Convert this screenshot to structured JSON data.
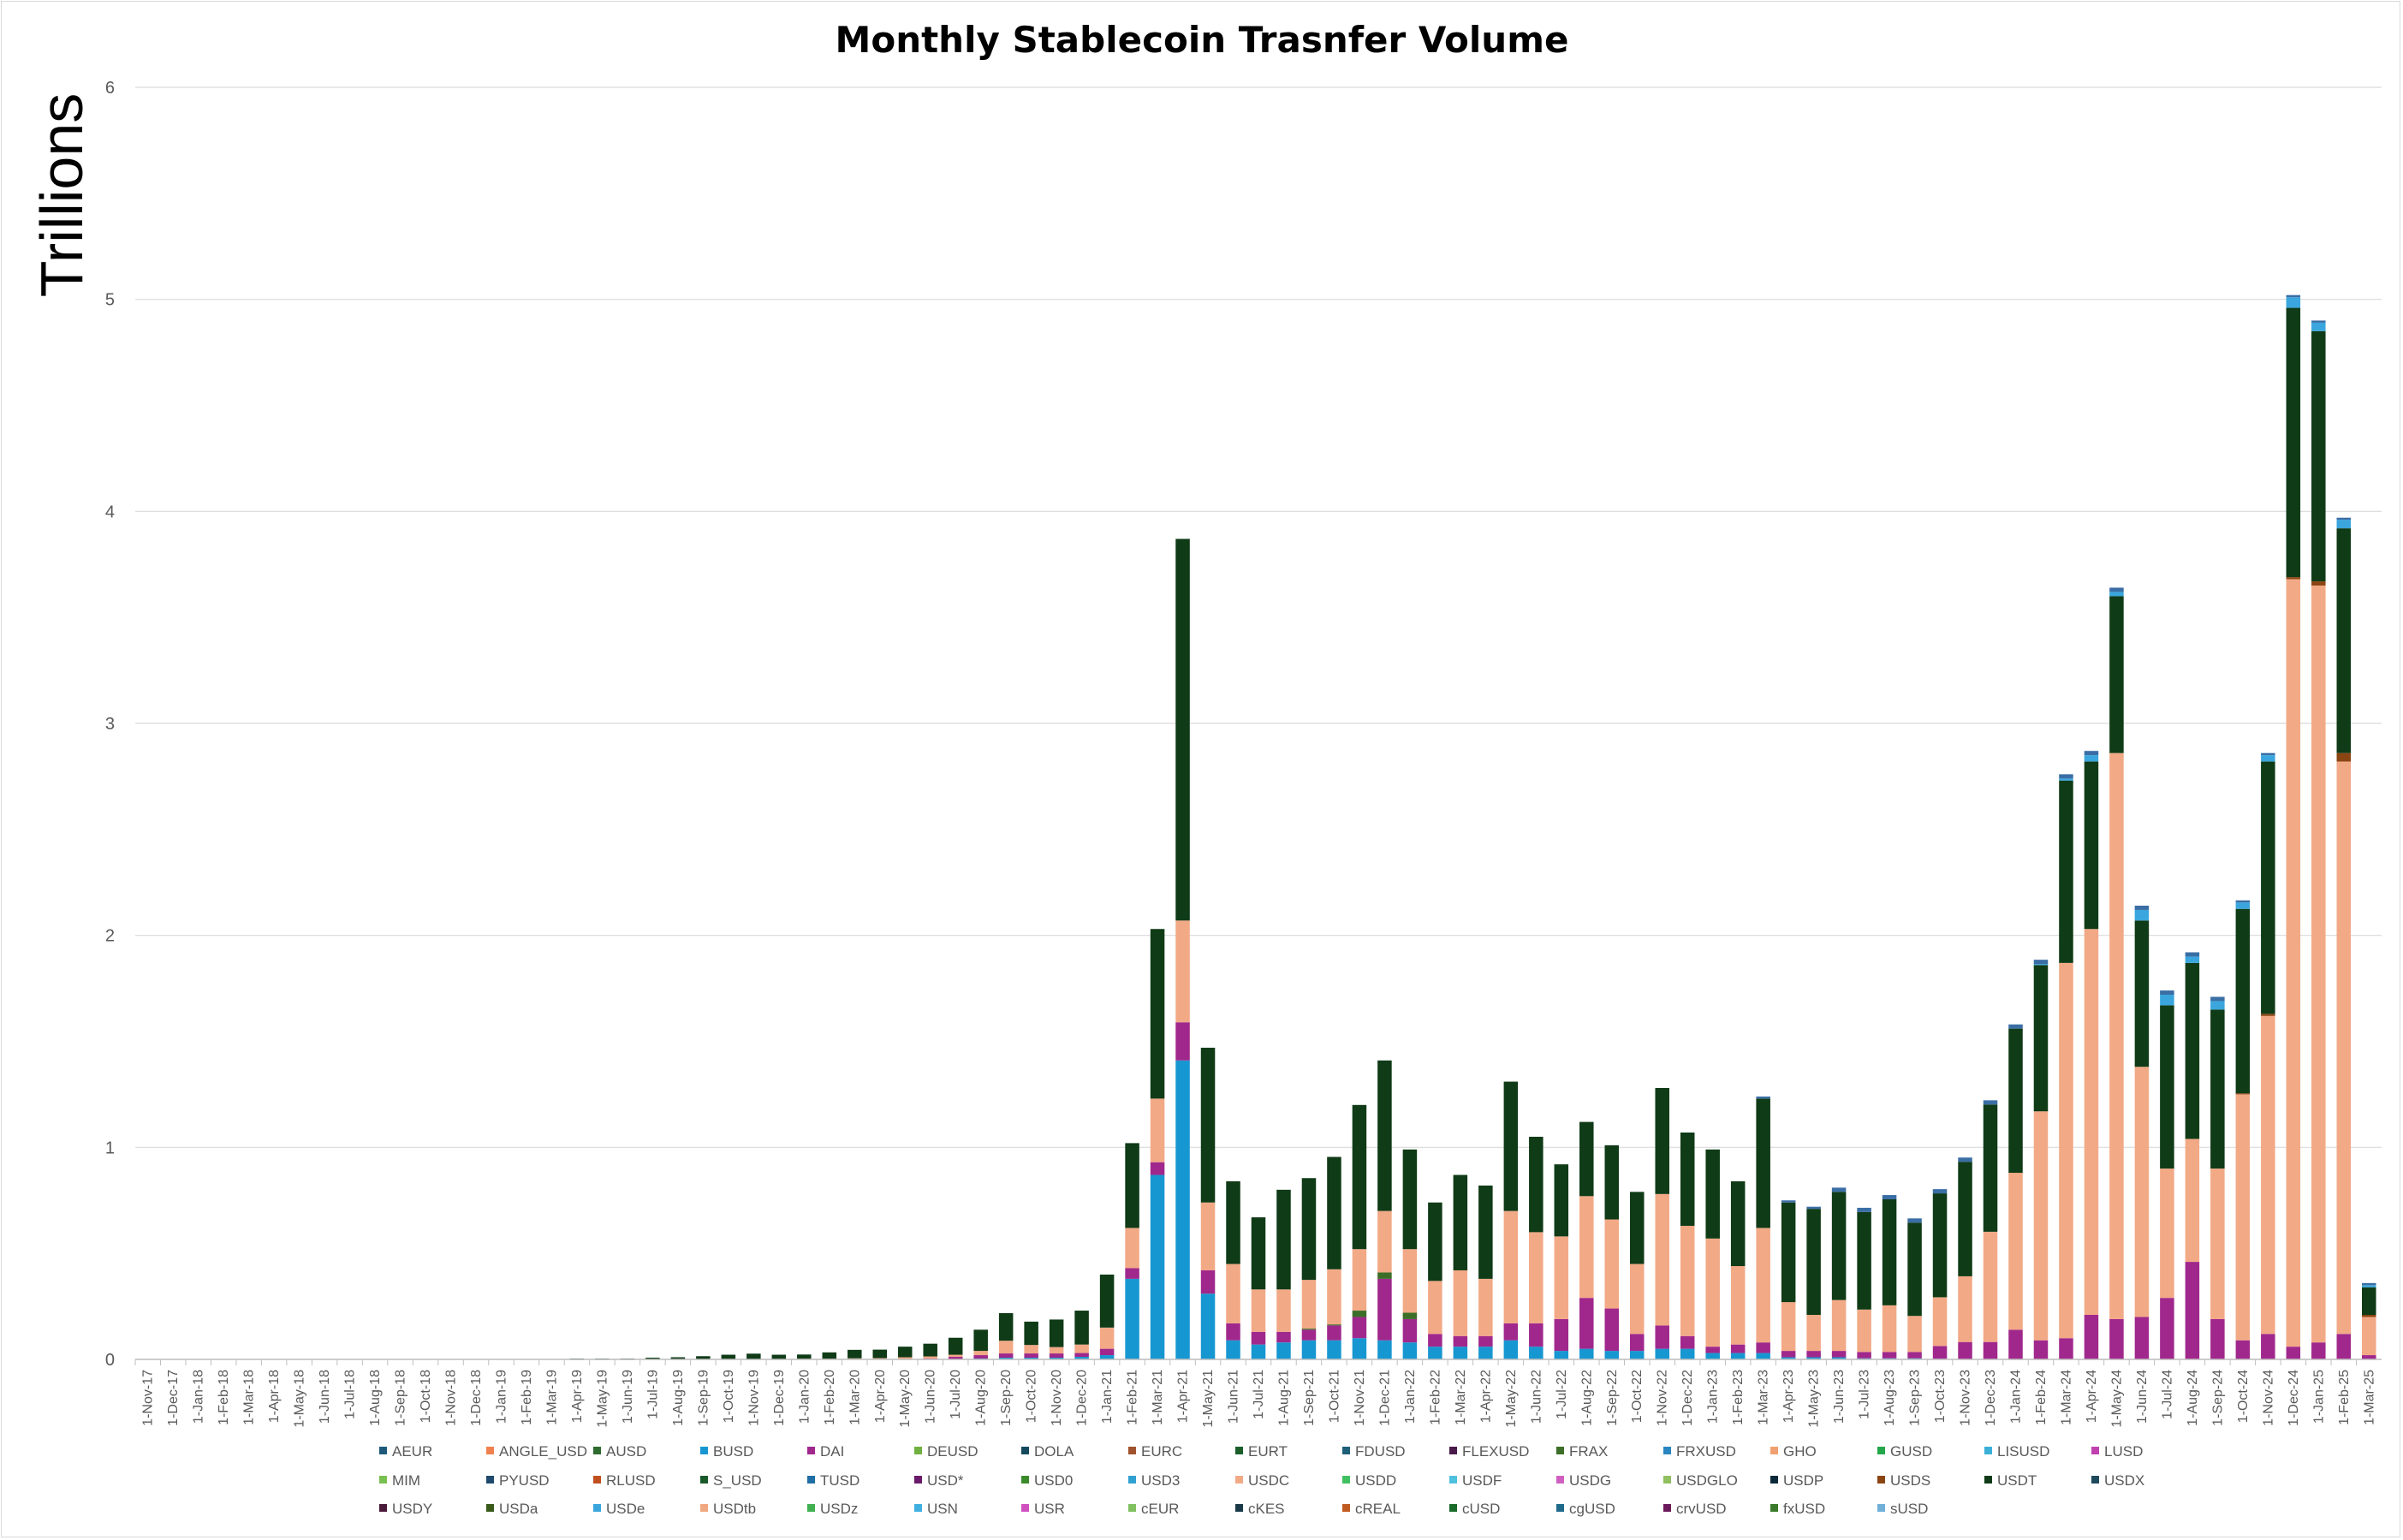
{
  "chart_data": {
    "type": "bar",
    "stacked": true,
    "title": "Monthly Stablecoin Trasnfer Volume",
    "ylabel": "Trillions",
    "xlabel": "",
    "ylim": [
      0,
      6
    ],
    "yticks": [
      "0",
      "1",
      "2",
      "3",
      "4",
      "5",
      "6"
    ],
    "grid": true,
    "legend_position": "bottom",
    "categories": [
      "1-Nov-17",
      "1-Dec-17",
      "1-Jan-18",
      "1-Feb-18",
      "1-Mar-18",
      "1-Apr-18",
      "1-May-18",
      "1-Jun-18",
      "1-Jul-18",
      "1-Aug-18",
      "1-Sep-18",
      "1-Oct-18",
      "1-Nov-18",
      "1-Dec-18",
      "1-Jan-19",
      "1-Feb-19",
      "1-Mar-19",
      "1-Apr-19",
      "1-May-19",
      "1-Jun-19",
      "1-Jul-19",
      "1-Aug-19",
      "1-Sep-19",
      "1-Oct-19",
      "1-Nov-19",
      "1-Dec-19",
      "1-Jan-20",
      "1-Feb-20",
      "1-Mar-20",
      "1-Apr-20",
      "1-May-20",
      "1-Jun-20",
      "1-Jul-20",
      "1-Aug-20",
      "1-Sep-20",
      "1-Oct-20",
      "1-Nov-20",
      "1-Dec-20",
      "1-Jan-21",
      "1-Feb-21",
      "1-Mar-21",
      "1-Apr-21",
      "1-May-21",
      "1-Jun-21",
      "1-Jul-21",
      "1-Aug-21",
      "1-Sep-21",
      "1-Oct-21",
      "1-Nov-21",
      "1-Dec-21",
      "1-Jan-22",
      "1-Feb-22",
      "1-Mar-22",
      "1-Apr-22",
      "1-May-22",
      "1-Jun-22",
      "1-Jul-22",
      "1-Aug-22",
      "1-Sep-22",
      "1-Oct-22",
      "1-Nov-22",
      "1-Dec-22",
      "1-Jan-23",
      "1-Feb-23",
      "1-Mar-23",
      "1-Apr-23",
      "1-May-23",
      "1-Jun-23",
      "1-Jul-23",
      "1-Aug-23",
      "1-Sep-23",
      "1-Oct-23",
      "1-Nov-23",
      "1-Dec-23",
      "1-Jan-24",
      "1-Feb-24",
      "1-Mar-24",
      "1-Apr-24",
      "1-May-24",
      "1-Jun-24",
      "1-Jul-24",
      "1-Aug-24",
      "1-Sep-24",
      "1-Oct-24",
      "1-Nov-24",
      "1-Dec-24",
      "1-Jan-25",
      "1-Feb-25",
      "1-Mar-25"
    ],
    "series": [
      {
        "name": "BUSD",
        "color": "#1797d1",
        "values": [
          0,
          0,
          0,
          0,
          0,
          0,
          0,
          0,
          0,
          0,
          0,
          0,
          0,
          0,
          0,
          0,
          0,
          0,
          0,
          0,
          0,
          0,
          0,
          0,
          0,
          0,
          0,
          0,
          0,
          0,
          0,
          0,
          0.002,
          0.004,
          0.008,
          0.008,
          0.008,
          0.012,
          0.02,
          0.38,
          0.87,
          1.41,
          0.31,
          0.09,
          0.07,
          0.08,
          0.09,
          0.09,
          0.1,
          0.09,
          0.08,
          0.06,
          0.06,
          0.06,
          0.09,
          0.06,
          0.04,
          0.05,
          0.04,
          0.04,
          0.05,
          0.05,
          0.03,
          0.03,
          0.03,
          0.01,
          0.01,
          0.01,
          0.005,
          0.005,
          0.005,
          0.003,
          0.002,
          0.002,
          0,
          0,
          0,
          0,
          0,
          0,
          0,
          0,
          0,
          0,
          0,
          0,
          0,
          0,
          0
        ]
      },
      {
        "name": "DAI",
        "color": "#a0288c",
        "values": [
          0,
          0,
          0,
          0,
          0,
          0,
          0,
          0,
          0,
          0,
          0,
          0,
          0,
          0,
          0,
          0,
          0,
          0,
          0,
          0,
          0,
          0,
          0,
          0,
          0,
          0,
          0,
          0,
          0,
          0,
          0.002,
          0.004,
          0.01,
          0.016,
          0.02,
          0.02,
          0.02,
          0.018,
          0.03,
          0.05,
          0.06,
          0.18,
          0.11,
          0.08,
          0.06,
          0.05,
          0.05,
          0.07,
          0.1,
          0.29,
          0.11,
          0.06,
          0.05,
          0.05,
          0.08,
          0.11,
          0.15,
          0.24,
          0.2,
          0.08,
          0.11,
          0.06,
          0.03,
          0.04,
          0.05,
          0.03,
          0.03,
          0.03,
          0.03,
          0.03,
          0.03,
          0.06,
          0.08,
          0.08,
          0.14,
          0.09,
          0.1,
          0.21,
          0.19,
          0.2,
          0.29,
          0.46,
          0.19,
          0.09,
          0.12,
          0.06,
          0.08,
          0.12,
          0.02
        ]
      },
      {
        "name": "FRAX",
        "color": "#3c6e27",
        "values": [
          0,
          0,
          0,
          0,
          0,
          0,
          0,
          0,
          0,
          0,
          0,
          0,
          0,
          0,
          0,
          0,
          0,
          0,
          0,
          0,
          0,
          0,
          0,
          0,
          0,
          0,
          0,
          0,
          0,
          0,
          0,
          0,
          0,
          0,
          0,
          0,
          0,
          0,
          0,
          0,
          0,
          0,
          0,
          0,
          0,
          0,
          0.005,
          0.005,
          0.03,
          0.03,
          0.03,
          0,
          0,
          0,
          0,
          0,
          0,
          0,
          0,
          0,
          0,
          0,
          0,
          0,
          0,
          0,
          0,
          0,
          0,
          0,
          0,
          0,
          0,
          0,
          0,
          0,
          0,
          0,
          0,
          0,
          0,
          0,
          0,
          0,
          0,
          0,
          0,
          0,
          0
        ]
      },
      {
        "name": "USDC",
        "color": "#f2a986",
        "values": [
          0,
          0,
          0,
          0,
          0,
          0,
          0,
          0,
          0,
          0,
          0,
          0,
          0,
          0,
          0,
          0,
          0,
          0,
          0,
          0,
          0,
          0,
          0,
          0.002,
          0.002,
          0.002,
          0.003,
          0.003,
          0.005,
          0.006,
          0.008,
          0.01,
          0.01,
          0.02,
          0.06,
          0.04,
          0.03,
          0.04,
          0.1,
          0.19,
          0.3,
          0.48,
          0.32,
          0.28,
          0.2,
          0.2,
          0.23,
          0.26,
          0.29,
          0.29,
          0.3,
          0.25,
          0.31,
          0.27,
          0.53,
          0.43,
          0.39,
          0.48,
          0.42,
          0.33,
          0.62,
          0.52,
          0.51,
          0.37,
          0.54,
          0.23,
          0.17,
          0.24,
          0.2,
          0.22,
          0.17,
          0.23,
          0.31,
          0.52,
          0.74,
          1.08,
          1.77,
          1.82,
          2.67,
          1.18,
          0.61,
          0.58,
          0.71,
          1.16,
          1.5,
          3.62,
          3.57,
          2.7,
          0.18
        ]
      },
      {
        "name": "USDS",
        "color": "#8b4513",
        "values": [
          0,
          0,
          0,
          0,
          0,
          0,
          0,
          0,
          0,
          0,
          0,
          0,
          0,
          0,
          0,
          0,
          0,
          0,
          0,
          0,
          0,
          0,
          0,
          0,
          0,
          0,
          0,
          0,
          0,
          0,
          0,
          0,
          0,
          0,
          0,
          0,
          0,
          0,
          0,
          0,
          0,
          0,
          0,
          0,
          0,
          0,
          0,
          0,
          0,
          0,
          0,
          0,
          0,
          0,
          0,
          0,
          0,
          0,
          0,
          0,
          0,
          0,
          0,
          0,
          0,
          0,
          0,
          0,
          0,
          0,
          0,
          0,
          0,
          0,
          0,
          0,
          0,
          0,
          0,
          0,
          0,
          0,
          0,
          0.005,
          0.01,
          0.01,
          0.02,
          0.04,
          0.01
        ]
      },
      {
        "name": "USDT",
        "color": "#0f3b17",
        "values": [
          0,
          0,
          0,
          0,
          0,
          0,
          0,
          0,
          0,
          0,
          0,
          0,
          0,
          0.002,
          0.001,
          0.001,
          0.001,
          0.004,
          0.004,
          0.004,
          0.008,
          0.01,
          0.015,
          0.02,
          0.025,
          0.02,
          0.02,
          0.03,
          0.04,
          0.04,
          0.05,
          0.06,
          0.08,
          0.1,
          0.13,
          0.11,
          0.13,
          0.16,
          0.25,
          0.4,
          0.8,
          1.8,
          0.73,
          0.39,
          0.34,
          0.47,
          0.48,
          0.53,
          0.68,
          0.71,
          0.47,
          0.37,
          0.45,
          0.44,
          0.61,
          0.45,
          0.34,
          0.35,
          0.35,
          0.34,
          0.5,
          0.44,
          0.42,
          0.4,
          0.61,
          0.47,
          0.5,
          0.51,
          0.46,
          0.5,
          0.44,
          0.49,
          0.54,
          0.6,
          0.68,
          0.69,
          0.86,
          0.79,
          0.74,
          0.69,
          0.77,
          0.83,
          0.75,
          0.87,
          1.19,
          1.27,
          1.18,
          1.06,
          0.13
        ]
      },
      {
        "name": "USDe",
        "color": "#3aa6dd",
        "values": [
          0,
          0,
          0,
          0,
          0,
          0,
          0,
          0,
          0,
          0,
          0,
          0,
          0,
          0,
          0,
          0,
          0,
          0,
          0,
          0,
          0,
          0,
          0,
          0,
          0,
          0,
          0,
          0,
          0,
          0,
          0,
          0,
          0,
          0,
          0,
          0,
          0,
          0,
          0,
          0,
          0,
          0,
          0,
          0,
          0,
          0,
          0,
          0,
          0,
          0,
          0,
          0,
          0,
          0,
          0,
          0,
          0,
          0,
          0,
          0,
          0,
          0,
          0,
          0,
          0,
          0,
          0,
          0,
          0,
          0,
          0,
          0,
          0,
          0,
          0,
          0.005,
          0.01,
          0.03,
          0.02,
          0.05,
          0.05,
          0.03,
          0.04,
          0.03,
          0.03,
          0.05,
          0.04,
          0.04,
          0.01
        ]
      },
      {
        "name": "TUSD",
        "color": "#3a6ea5",
        "values": [
          0,
          0,
          0,
          0,
          0,
          0,
          0,
          0,
          0,
          0,
          0,
          0,
          0,
          0,
          0,
          0,
          0,
          0,
          0,
          0,
          0,
          0,
          0,
          0,
          0,
          0,
          0,
          0,
          0,
          0,
          0,
          0,
          0,
          0,
          0,
          0,
          0,
          0,
          0,
          0,
          0,
          0,
          0,
          0,
          0,
          0,
          0,
          0,
          0,
          0,
          0,
          0,
          0,
          0,
          0,
          0,
          0,
          0,
          0,
          0,
          0,
          0,
          0,
          0,
          0.01,
          0.01,
          0.01,
          0.02,
          0.02,
          0.02,
          0.02,
          0.02,
          0.02,
          0.02,
          0.02,
          0.02,
          0.02,
          0.02,
          0.02,
          0.02,
          0.02,
          0.02,
          0.02,
          0.01,
          0.01,
          0.01,
          0.01,
          0.01,
          0.01
        ]
      }
    ],
    "legend": [
      [
        "AEUR",
        "#1f5a7a"
      ],
      [
        "ANGLE_USD",
        "#f08050"
      ],
      [
        "AUSD",
        "#2e6b2e"
      ],
      [
        "BUSD",
        "#1797d1"
      ],
      [
        "DAI",
        "#a0288c"
      ],
      [
        "DEUSD",
        "#70b040"
      ],
      [
        "DOLA",
        "#154a5e"
      ],
      [
        "EURC",
        "#a0522d"
      ],
      [
        "EURT",
        "#1a5e2a"
      ],
      [
        "FDUSD",
        "#1e5f7a"
      ],
      [
        "FLEXUSD",
        "#4a1a4a"
      ],
      [
        "FRAX",
        "#3c6e27"
      ],
      [
        "FRXUSD",
        "#2a86c0"
      ],
      [
        "GHO",
        "#f0a070"
      ],
      [
        "GUSD",
        "#22a84a"
      ],
      [
        "LISUSD",
        "#3ab0d8"
      ],
      [
        "LUSD",
        "#c040b0"
      ],
      [
        "MIM",
        "#7ac050"
      ],
      [
        "PYUSD",
        "#1f4a6e"
      ],
      [
        "RLUSD",
        "#c05020"
      ],
      [
        "S_USD",
        "#1a5a2a"
      ],
      [
        "TUSD",
        "#1f6ea5"
      ],
      [
        "USD*",
        "#6a1a6a"
      ],
      [
        "USD0",
        "#3a8a2a"
      ],
      [
        "USD3",
        "#30a0d0"
      ],
      [
        "USDC",
        "#f2a986"
      ],
      [
        "USDD",
        "#40c060"
      ],
      [
        "USDF",
        "#50c0e0"
      ],
      [
        "USDG",
        "#d060c0"
      ],
      [
        "USDGLO",
        "#90c060"
      ],
      [
        "USDP",
        "#0a2a3a"
      ],
      [
        "USDS",
        "#8b4513"
      ],
      [
        "USDT",
        "#0f3b17"
      ],
      [
        "USDX",
        "#1f4a5e"
      ],
      [
        "USDY",
        "#4a1a3a"
      ],
      [
        "USDa",
        "#3a5a1a"
      ],
      [
        "USDe",
        "#3aa6dd"
      ],
      [
        "USDtb",
        "#f0a880"
      ],
      [
        "USDz",
        "#40b050"
      ],
      [
        "USN",
        "#40b0e0"
      ],
      [
        "USR",
        "#d050c0"
      ],
      [
        "cEUR",
        "#80c060"
      ],
      [
        "cKES",
        "#1a3a4a"
      ],
      [
        "cREAL",
        "#c05a20"
      ],
      [
        "cUSD",
        "#1a6a2a"
      ],
      [
        "cgUSD",
        "#1f6a8a"
      ],
      [
        "crvUSD",
        "#6a1a5a"
      ],
      [
        "fxUSD",
        "#3a7a2a"
      ],
      [
        "sUSD",
        "#70b0d8"
      ]
    ]
  }
}
